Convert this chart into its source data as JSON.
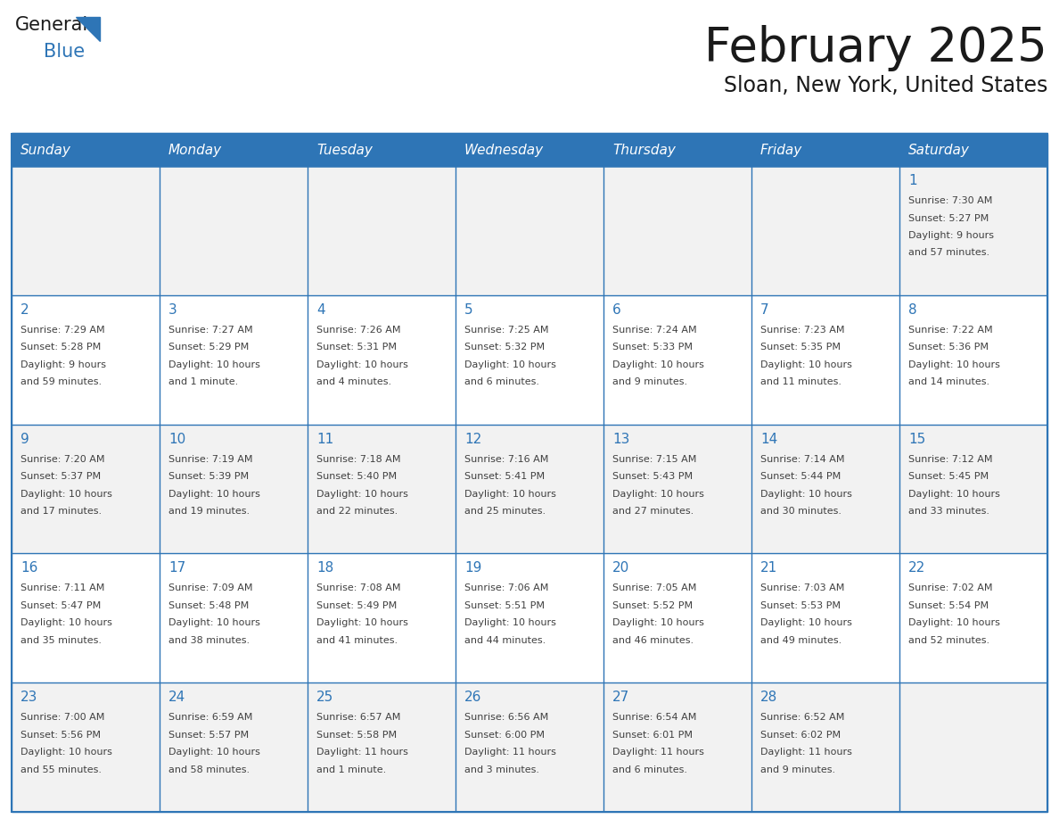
{
  "title": "February 2025",
  "subtitle": "Sloan, New York, United States",
  "header_color": "#2E75B6",
  "header_text_color": "#FFFFFF",
  "cell_bg_white": "#FFFFFF",
  "cell_bg_gray": "#F2F2F2",
  "day_headers": [
    "Sunday",
    "Monday",
    "Tuesday",
    "Wednesday",
    "Thursday",
    "Friday",
    "Saturday"
  ],
  "calendar": [
    [
      null,
      null,
      null,
      null,
      null,
      null,
      {
        "day": 1,
        "sunrise": "7:30 AM",
        "sunset": "5:27 PM",
        "daylight": "9 hours and 57 minutes."
      }
    ],
    [
      {
        "day": 2,
        "sunrise": "7:29 AM",
        "sunset": "5:28 PM",
        "daylight": "9 hours and 59 minutes."
      },
      {
        "day": 3,
        "sunrise": "7:27 AM",
        "sunset": "5:29 PM",
        "daylight": "10 hours and 1 minute."
      },
      {
        "day": 4,
        "sunrise": "7:26 AM",
        "sunset": "5:31 PM",
        "daylight": "10 hours and 4 minutes."
      },
      {
        "day": 5,
        "sunrise": "7:25 AM",
        "sunset": "5:32 PM",
        "daylight": "10 hours and 6 minutes."
      },
      {
        "day": 6,
        "sunrise": "7:24 AM",
        "sunset": "5:33 PM",
        "daylight": "10 hours and 9 minutes."
      },
      {
        "day": 7,
        "sunrise": "7:23 AM",
        "sunset": "5:35 PM",
        "daylight": "10 hours and 11 minutes."
      },
      {
        "day": 8,
        "sunrise": "7:22 AM",
        "sunset": "5:36 PM",
        "daylight": "10 hours and 14 minutes."
      }
    ],
    [
      {
        "day": 9,
        "sunrise": "7:20 AM",
        "sunset": "5:37 PM",
        "daylight": "10 hours and 17 minutes."
      },
      {
        "day": 10,
        "sunrise": "7:19 AM",
        "sunset": "5:39 PM",
        "daylight": "10 hours and 19 minutes."
      },
      {
        "day": 11,
        "sunrise": "7:18 AM",
        "sunset": "5:40 PM",
        "daylight": "10 hours and 22 minutes."
      },
      {
        "day": 12,
        "sunrise": "7:16 AM",
        "sunset": "5:41 PM",
        "daylight": "10 hours and 25 minutes."
      },
      {
        "day": 13,
        "sunrise": "7:15 AM",
        "sunset": "5:43 PM",
        "daylight": "10 hours and 27 minutes."
      },
      {
        "day": 14,
        "sunrise": "7:14 AM",
        "sunset": "5:44 PM",
        "daylight": "10 hours and 30 minutes."
      },
      {
        "day": 15,
        "sunrise": "7:12 AM",
        "sunset": "5:45 PM",
        "daylight": "10 hours and 33 minutes."
      }
    ],
    [
      {
        "day": 16,
        "sunrise": "7:11 AM",
        "sunset": "5:47 PM",
        "daylight": "10 hours and 35 minutes."
      },
      {
        "day": 17,
        "sunrise": "7:09 AM",
        "sunset": "5:48 PM",
        "daylight": "10 hours and 38 minutes."
      },
      {
        "day": 18,
        "sunrise": "7:08 AM",
        "sunset": "5:49 PM",
        "daylight": "10 hours and 41 minutes."
      },
      {
        "day": 19,
        "sunrise": "7:06 AM",
        "sunset": "5:51 PM",
        "daylight": "10 hours and 44 minutes."
      },
      {
        "day": 20,
        "sunrise": "7:05 AM",
        "sunset": "5:52 PM",
        "daylight": "10 hours and 46 minutes."
      },
      {
        "day": 21,
        "sunrise": "7:03 AM",
        "sunset": "5:53 PM",
        "daylight": "10 hours and 49 minutes."
      },
      {
        "day": 22,
        "sunrise": "7:02 AM",
        "sunset": "5:54 PM",
        "daylight": "10 hours and 52 minutes."
      }
    ],
    [
      {
        "day": 23,
        "sunrise": "7:00 AM",
        "sunset": "5:56 PM",
        "daylight": "10 hours and 55 minutes."
      },
      {
        "day": 24,
        "sunrise": "6:59 AM",
        "sunset": "5:57 PM",
        "daylight": "10 hours and 58 minutes."
      },
      {
        "day": 25,
        "sunrise": "6:57 AM",
        "sunset": "5:58 PM",
        "daylight": "11 hours and 1 minute."
      },
      {
        "day": 26,
        "sunrise": "6:56 AM",
        "sunset": "6:00 PM",
        "daylight": "11 hours and 3 minutes."
      },
      {
        "day": 27,
        "sunrise": "6:54 AM",
        "sunset": "6:01 PM",
        "daylight": "11 hours and 6 minutes."
      },
      {
        "day": 28,
        "sunrise": "6:52 AM",
        "sunset": "6:02 PM",
        "daylight": "11 hours and 9 minutes."
      },
      null
    ]
  ],
  "border_color": "#2E75B6",
  "divider_color": "#2E75B6",
  "text_color": "#404040",
  "day_number_color": "#2E75B6",
  "title_fontsize": 38,
  "subtitle_fontsize": 17,
  "header_fontsize": 11,
  "day_num_fontsize": 11,
  "cell_text_fontsize": 8
}
